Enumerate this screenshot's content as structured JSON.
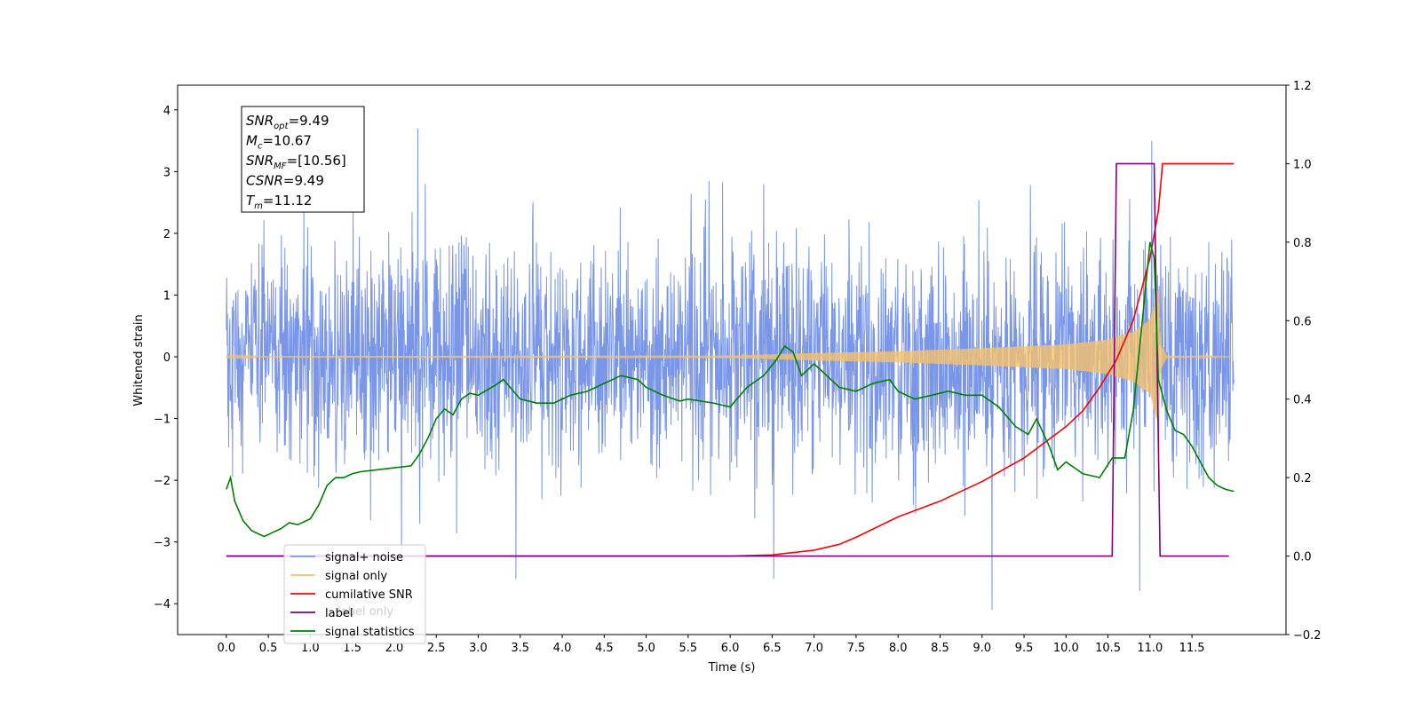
{
  "chart_data": {
    "type": "line",
    "xlabel": "Time (s)",
    "ylabel": "Whitened strain",
    "xlim": [
      -0.58,
      12.62
    ],
    "ylim": [
      -4.5,
      4.4
    ],
    "y2lim": [
      -0.2,
      1.2
    ],
    "x_ticks": [
      0.0,
      0.5,
      1.0,
      1.5,
      2.0,
      2.5,
      3.0,
      3.5,
      4.0,
      4.5,
      5.0,
      5.5,
      6.0,
      6.5,
      7.0,
      7.5,
      8.0,
      8.5,
      9.0,
      9.5,
      10.0,
      10.5,
      11.0,
      11.5
    ],
    "x_tick_labels": [
      "0.0",
      "0.5",
      "1.0",
      "1.5",
      "2.0",
      "2.5",
      "3.0",
      "3.5",
      "4.0",
      "4.5",
      "5.0",
      "5.5",
      "6.0",
      "6.5",
      "7.0",
      "7.5",
      "8.0",
      "8.5",
      "9.0",
      "9.5",
      "10.0",
      "10.5",
      "11.0",
      "11.5"
    ],
    "y_ticks": [
      -4,
      -3,
      -2,
      -1,
      0,
      1,
      2,
      3,
      4
    ],
    "y_tick_labels": [
      "−4",
      "−3",
      "−2",
      "−1",
      "0",
      "1",
      "2",
      "3",
      "4"
    ],
    "y2_ticks": [
      -0.2,
      0.0,
      0.2,
      0.4,
      0.6,
      0.8,
      1.0,
      1.2
    ],
    "y2_tick_labels": [
      "−0.2",
      "0.0",
      "0.2",
      "0.4",
      "0.6",
      "0.8",
      "1.0",
      "1.2"
    ],
    "grid": false,
    "legend_position": "lower-left",
    "annotation_lines": [
      {
        "main": "SNR",
        "sub": "opt",
        "rest": "=9.49"
      },
      {
        "main": "M",
        "sub": "c",
        "rest": "=10.67"
      },
      {
        "main": "SNR",
        "sub": "MF",
        "rest": "=[10.56]"
      },
      {
        "main": "CSNR",
        "sub": "",
        "rest": "=9.49"
      },
      {
        "main": "T",
        "sub": "m",
        "rest": "=11.12"
      }
    ],
    "legend_entries": [
      {
        "label": "signal+ noise",
        "color": "#7a96e8"
      },
      {
        "label": "signal only",
        "color": "#f5c26b"
      },
      {
        "label": "cumilative SNR",
        "color": "#ff0000"
      },
      {
        "label": "label",
        "color": "#800080"
      },
      {
        "label": "signal statistics",
        "color": "#008000"
      }
    ],
    "hidden_text_behind_legend": [
      "label only"
    ],
    "series": [
      {
        "name": "signal+ noise",
        "axis": "left",
        "color": "#7a96e8",
        "x_range": [
          0.0,
          12.0
        ],
        "typical_envelope": [
          -1.7,
          1.7
        ],
        "peak_range": [
          -4.1,
          3.7
        ],
        "notable_peaks": [
          {
            "x": 2.28,
            "y": 3.7
          },
          {
            "x": 9.12,
            "y": -4.1
          },
          {
            "x": 10.88,
            "y": -3.8
          },
          {
            "x": 11.02,
            "y": 3.5
          },
          {
            "x": 3.45,
            "y": -3.6
          },
          {
            "x": 6.52,
            "y": -3.6
          }
        ]
      },
      {
        "name": "signal only",
        "axis": "left",
        "color": "#f5c26b",
        "x_range": [
          0.0,
          12.0
        ],
        "amplitude_envelope": [
          [
            0.0,
            0.01
          ],
          [
            6.0,
            0.02
          ],
          [
            7.0,
            0.06
          ],
          [
            8.0,
            0.09
          ],
          [
            9.0,
            0.14
          ],
          [
            10.0,
            0.2
          ],
          [
            10.5,
            0.28
          ],
          [
            10.8,
            0.4
          ],
          [
            11.0,
            0.6
          ],
          [
            11.1,
            1.1
          ],
          [
            11.13,
            0.2
          ],
          [
            11.2,
            0.02
          ],
          [
            12.0,
            0.0
          ]
        ]
      },
      {
        "name": "cumilative SNR",
        "axis": "right",
        "color": "#ff0000",
        "x": [
          0.0,
          6.0,
          6.5,
          7.0,
          7.3,
          7.5,
          8.0,
          8.5,
          9.0,
          9.5,
          10.0,
          10.2,
          10.4,
          10.6,
          10.8,
          11.0,
          11.1,
          11.15,
          12.0
        ],
        "values": [
          0.0,
          0.0,
          0.003,
          0.015,
          0.03,
          0.048,
          0.1,
          0.14,
          0.19,
          0.25,
          0.33,
          0.37,
          0.43,
          0.5,
          0.6,
          0.76,
          0.88,
          1.0,
          1.0
        ]
      },
      {
        "name": "label",
        "axis": "right",
        "color": "#800080",
        "x": [
          0.0,
          10.55,
          10.6,
          11.05,
          11.12,
          11.94
        ],
        "values": [
          0.0,
          0.0,
          1.0,
          1.0,
          0.0,
          0.0
        ]
      },
      {
        "name": "signal statistics",
        "axis": "right",
        "color": "#008000",
        "x": [
          0.0,
          0.05,
          0.1,
          0.2,
          0.3,
          0.45,
          0.55,
          0.65,
          0.75,
          0.85,
          1.0,
          1.1,
          1.2,
          1.3,
          1.4,
          1.5,
          1.6,
          1.8,
          2.0,
          2.2,
          2.3,
          2.4,
          2.5,
          2.6,
          2.7,
          2.8,
          2.9,
          3.0,
          3.2,
          3.3,
          3.5,
          3.7,
          3.9,
          4.1,
          4.3,
          4.5,
          4.7,
          4.9,
          5.0,
          5.2,
          5.4,
          5.5,
          5.8,
          6.0,
          6.2,
          6.4,
          6.55,
          6.65,
          6.75,
          6.85,
          7.0,
          7.1,
          7.3,
          7.5,
          7.7,
          7.9,
          8.0,
          8.2,
          8.4,
          8.6,
          8.8,
          9.0,
          9.2,
          9.4,
          9.55,
          9.65,
          9.8,
          9.9,
          10.0,
          10.2,
          10.4,
          10.55,
          10.7,
          10.8,
          10.9,
          11.0,
          11.05,
          11.1,
          11.2,
          11.3,
          11.4,
          11.5,
          11.6,
          11.7,
          11.8,
          11.9,
          12.0
        ],
        "values": [
          0.17,
          0.2,
          0.14,
          0.09,
          0.065,
          0.05,
          0.06,
          0.07,
          0.085,
          0.08,
          0.095,
          0.13,
          0.18,
          0.2,
          0.2,
          0.21,
          0.215,
          0.22,
          0.225,
          0.23,
          0.26,
          0.3,
          0.35,
          0.375,
          0.36,
          0.4,
          0.415,
          0.41,
          0.435,
          0.45,
          0.4,
          0.39,
          0.39,
          0.41,
          0.42,
          0.44,
          0.46,
          0.45,
          0.43,
          0.41,
          0.395,
          0.4,
          0.39,
          0.38,
          0.43,
          0.46,
          0.5,
          0.535,
          0.52,
          0.46,
          0.49,
          0.47,
          0.43,
          0.42,
          0.44,
          0.45,
          0.42,
          0.4,
          0.41,
          0.42,
          0.41,
          0.41,
          0.38,
          0.33,
          0.31,
          0.35,
          0.28,
          0.22,
          0.24,
          0.21,
          0.2,
          0.25,
          0.25,
          0.37,
          0.58,
          0.8,
          0.76,
          0.45,
          0.37,
          0.32,
          0.31,
          0.28,
          0.24,
          0.2,
          0.18,
          0.17,
          0.165
        ]
      }
    ]
  }
}
